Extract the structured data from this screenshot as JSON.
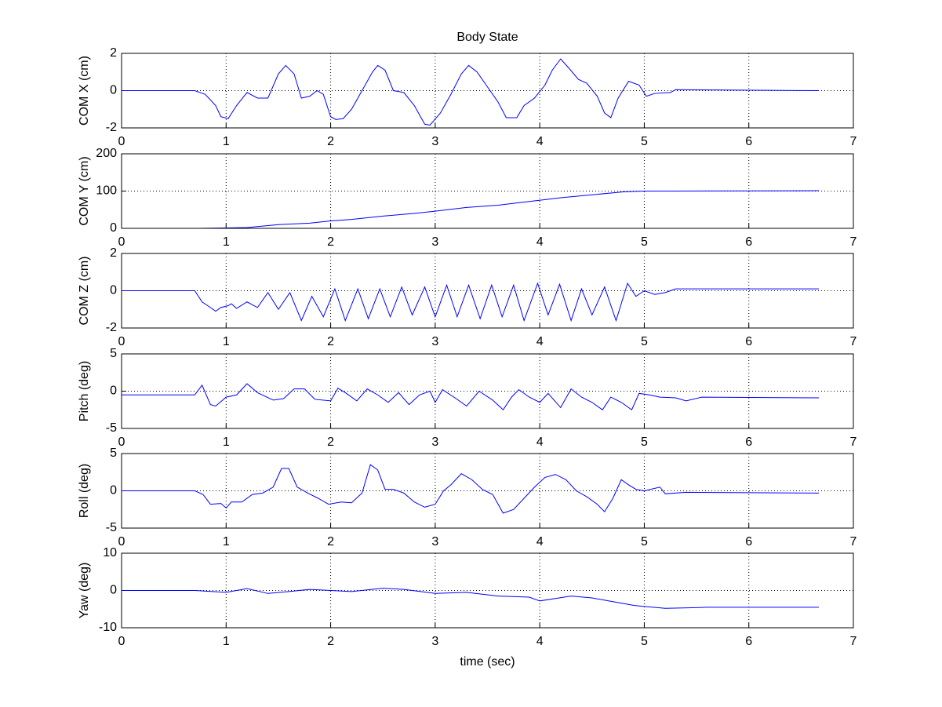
{
  "chart_data": [
    {
      "type": "line",
      "title": "Body State",
      "ylabel": "COM X (cm)",
      "color": "#0000ff",
      "grid": true,
      "xlim": [
        0,
        7
      ],
      "xticks": [
        0,
        1,
        2,
        3,
        4,
        5,
        6,
        7
      ],
      "ylim": [
        -2,
        2
      ],
      "yticks": [
        -2,
        0,
        2
      ],
      "x": [
        0,
        0.7,
        0.8,
        0.9,
        0.95,
        1.02,
        1.1,
        1.2,
        1.3,
        1.4,
        1.5,
        1.57,
        1.65,
        1.72,
        1.8,
        1.87,
        1.93,
        2.0,
        2.05,
        2.12,
        2.2,
        2.3,
        2.4,
        2.45,
        2.52,
        2.6,
        2.7,
        2.8,
        2.9,
        2.95,
        3.05,
        3.15,
        3.25,
        3.32,
        3.4,
        3.5,
        3.6,
        3.68,
        3.78,
        3.85,
        3.95,
        4.05,
        4.12,
        4.2,
        4.28,
        4.37,
        4.45,
        4.55,
        4.62,
        4.68,
        4.75,
        4.85,
        4.95,
        5.02,
        5.1,
        5.25,
        5.3,
        6.67
      ],
      "values": [
        0,
        0,
        -0.2,
        -0.8,
        -1.4,
        -1.5,
        -0.8,
        -0.1,
        -0.4,
        -0.4,
        0.9,
        1.35,
        0.9,
        -0.4,
        -0.3,
        0,
        -0.2,
        -1.4,
        -1.55,
        -1.5,
        -1.0,
        0,
        1.0,
        1.35,
        1.1,
        0,
        -0.1,
        -0.8,
        -1.8,
        -1.85,
        -1.2,
        -0.2,
        0.9,
        1.35,
        1.0,
        0.2,
        -0.6,
        -1.45,
        -1.45,
        -0.8,
        -0.4,
        0.3,
        1.1,
        1.7,
        1.2,
        0.6,
        0.4,
        -0.3,
        -1.2,
        -1.45,
        -0.4,
        0.5,
        0.3,
        -0.3,
        -0.15,
        -0.1,
        0.05,
        0
      ]
    },
    {
      "type": "line",
      "ylabel": "COM Y (cm)",
      "color": "#0000ff",
      "grid": true,
      "xlim": [
        0,
        7
      ],
      "xticks": [
        0,
        1,
        2,
        3,
        4,
        5,
        6,
        7
      ],
      "ylim": [
        0,
        200
      ],
      "yticks": [
        0,
        100,
        200
      ],
      "x": [
        0.72,
        1.0,
        1.2,
        1.5,
        1.8,
        2.0,
        2.2,
        2.5,
        2.8,
        3.0,
        3.3,
        3.6,
        3.9,
        4.2,
        4.5,
        4.8,
        5.0,
        5.3,
        6.67
      ],
      "values": [
        0,
        1,
        2,
        10,
        14,
        20,
        24,
        33,
        40,
        46,
        56,
        62,
        72,
        82,
        90,
        98,
        100,
        100,
        101
      ]
    },
    {
      "type": "line",
      "ylabel": "COM Z (cm)",
      "color": "#0000ff",
      "grid": true,
      "xlim": [
        0,
        7
      ],
      "xticks": [
        0,
        1,
        2,
        3,
        4,
        5,
        6,
        7
      ],
      "ylim": [
        -2,
        2
      ],
      "yticks": [
        -2,
        0,
        2
      ],
      "x": [
        0,
        0.7,
        0.77,
        0.85,
        0.9,
        0.95,
        1.02,
        1.05,
        1.1,
        1.2,
        1.3,
        1.4,
        1.5,
        1.61,
        1.72,
        1.82,
        1.93,
        2.04,
        2.14,
        2.26,
        2.36,
        2.47,
        2.57,
        2.68,
        2.78,
        2.9,
        3.0,
        3.11,
        3.21,
        3.32,
        3.43,
        3.54,
        3.64,
        3.75,
        3.85,
        3.98,
        4.08,
        4.19,
        4.3,
        4.4,
        4.5,
        4.62,
        4.73,
        4.84,
        4.92,
        5.0,
        5.1,
        5.2,
        5.3,
        6.67
      ],
      "values": [
        0,
        0,
        -0.6,
        -0.9,
        -1.1,
        -0.9,
        -0.8,
        -0.7,
        -0.95,
        -0.6,
        -0.9,
        -0.1,
        -1.0,
        -0.1,
        -1.6,
        -0.3,
        -1.4,
        0.1,
        -1.6,
        0.1,
        -1.5,
        0.1,
        -1.4,
        0.2,
        -1.3,
        0.2,
        -1.4,
        0.3,
        -1.4,
        0.3,
        -1.5,
        0.3,
        -1.4,
        0.3,
        -1.6,
        0.4,
        -1.3,
        0.35,
        -1.6,
        0.1,
        -1.3,
        0.2,
        -1.6,
        0.4,
        -0.3,
        0,
        -0.2,
        -0.1,
        0.1,
        0.1
      ]
    },
    {
      "type": "line",
      "ylabel": "Pitch (deg)",
      "color": "#0000ff",
      "grid": true,
      "xlim": [
        0,
        7
      ],
      "xticks": [
        0,
        1,
        2,
        3,
        4,
        5,
        6,
        7
      ],
      "ylim": [
        -5,
        5
      ],
      "yticks": [
        -5,
        0,
        5
      ],
      "x": [
        0,
        0.7,
        0.77,
        0.85,
        0.9,
        1.0,
        1.1,
        1.2,
        1.3,
        1.45,
        1.55,
        1.65,
        1.75,
        1.85,
        2.0,
        2.07,
        2.15,
        2.25,
        2.35,
        2.45,
        2.55,
        2.65,
        2.75,
        2.85,
        2.95,
        3.0,
        3.07,
        3.2,
        3.3,
        3.42,
        3.55,
        3.65,
        3.73,
        3.8,
        3.9,
        4.0,
        4.08,
        4.2,
        4.3,
        4.4,
        4.5,
        4.6,
        4.68,
        4.78,
        4.88,
        4.95,
        5.05,
        5.15,
        5.3,
        5.4,
        5.55,
        6.67
      ],
      "values": [
        -0.5,
        -0.5,
        0.8,
        -1.8,
        -2.0,
        -0.8,
        -0.5,
        1.0,
        -0.2,
        -1.2,
        -1.0,
        0.3,
        0.3,
        -1.1,
        -1.3,
        0.4,
        -0.3,
        -1.3,
        0.3,
        -0.5,
        -1.5,
        -0.2,
        -1.8,
        -0.5,
        0,
        -1.5,
        0.2,
        -1.0,
        -2.0,
        0,
        -1.2,
        -2.5,
        -0.8,
        0.2,
        -0.8,
        -1.5,
        -0.3,
        -2.2,
        0.3,
        -0.8,
        -1.5,
        -2.5,
        -0.8,
        -1.5,
        -2.5,
        -0.3,
        -0.5,
        -0.8,
        -0.9,
        -1.3,
        -0.8,
        -0.9
      ]
    },
    {
      "type": "line",
      "ylabel": "Roll  (deg)",
      "color": "#0000ff",
      "grid": true,
      "xlim": [
        0,
        7
      ],
      "xticks": [
        0,
        1,
        2,
        3,
        4,
        5,
        6,
        7
      ],
      "ylim": [
        -5,
        5
      ],
      "yticks": [
        -5,
        0,
        5
      ],
      "x": [
        0,
        0.7,
        0.78,
        0.85,
        0.95,
        1.0,
        1.05,
        1.15,
        1.25,
        1.35,
        1.45,
        1.53,
        1.6,
        1.68,
        1.78,
        1.88,
        1.98,
        2.1,
        2.2,
        2.3,
        2.38,
        2.45,
        2.52,
        2.6,
        2.7,
        2.8,
        2.9,
        3.0,
        3.08,
        3.15,
        3.25,
        3.35,
        3.45,
        3.55,
        3.65,
        3.75,
        3.85,
        3.95,
        4.05,
        4.15,
        4.25,
        4.35,
        4.45,
        4.55,
        4.62,
        4.7,
        4.78,
        4.85,
        4.92,
        5.0,
        5.15,
        5.2,
        5.4,
        6.67
      ],
      "values": [
        0,
        0,
        -0.5,
        -1.8,
        -1.7,
        -2.3,
        -1.5,
        -1.5,
        -0.5,
        -0.3,
        0.5,
        3.0,
        3.0,
        0.5,
        -0.3,
        -1.0,
        -1.8,
        -1.5,
        -1.6,
        -0.3,
        3.5,
        2.8,
        0.2,
        0.2,
        -0.3,
        -1.5,
        -2.2,
        -1.8,
        0,
        0.8,
        2.3,
        1.5,
        0.2,
        -0.5,
        -3.0,
        -2.5,
        -1.0,
        0.5,
        1.8,
        2.2,
        1.5,
        0,
        -0.8,
        -1.8,
        -2.8,
        -1.0,
        1.5,
        0.8,
        0.2,
        0,
        0.5,
        -0.4,
        -0.2,
        -0.3
      ]
    },
    {
      "type": "line",
      "ylabel": "Yaw   (deg)",
      "xlabel": "time (sec)",
      "color": "#0000ff",
      "grid": true,
      "xlim": [
        0,
        7
      ],
      "xticks": [
        0,
        1,
        2,
        3,
        4,
        5,
        6,
        7
      ],
      "ylim": [
        -10,
        10
      ],
      "yticks": [
        -10,
        0,
        10
      ],
      "x": [
        0,
        0.7,
        1.0,
        1.2,
        1.4,
        1.6,
        1.8,
        2.0,
        2.2,
        2.5,
        2.7,
        3.0,
        3.3,
        3.6,
        3.9,
        4.0,
        4.3,
        4.5,
        4.7,
        4.9,
        5.0,
        5.2,
        5.5,
        5.6,
        6.67
      ],
      "values": [
        0,
        0,
        -0.5,
        0.5,
        -0.8,
        -0.3,
        0.3,
        0,
        -0.3,
        0.6,
        0.3,
        -0.8,
        -0.5,
        -1.5,
        -1.8,
        -2.8,
        -1.5,
        -2.0,
        -3.0,
        -4.0,
        -4.3,
        -4.8,
        -4.6,
        -4.5,
        -4.5
      ]
    }
  ]
}
